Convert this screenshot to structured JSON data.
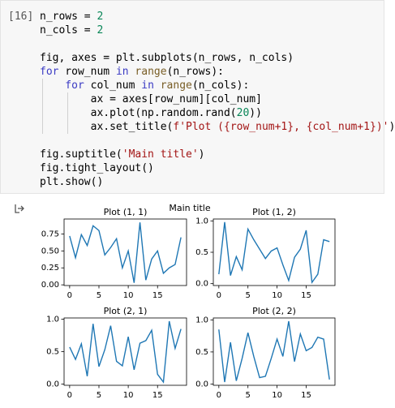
{
  "cell": {
    "prompt": "[16]",
    "code": [
      [
        [
          {
            "text": "n_rows = ",
            "color": "#000000"
          },
          {
            "text": "2",
            "color": "#098658"
          }
        ],
        [
          {
            "text": "n_cols = ",
            "color": "#000000"
          },
          {
            "text": "2",
            "color": "#098658"
          }
        ]
      ],
      [
        [
          {
            "text": "fig, axes = plt.subplots(n_rows, n_cols)",
            "color": "#000000"
          }
        ],
        [
          {
            "text": "for",
            "color": "#3b3bc4"
          },
          {
            "text": " row_num ",
            "color": "#000000"
          },
          {
            "text": "in",
            "color": "#3b3bc4"
          },
          {
            "text": " ",
            "color": "#000000"
          },
          {
            "text": "range",
            "color": "#795e26"
          },
          {
            "text": "(n_rows):",
            "color": "#000000"
          }
        ],
        [
          {
            "text": "    for",
            "color": "#3b3bc4"
          },
          {
            "text": " col_num ",
            "color": "#000000"
          },
          {
            "text": "in",
            "color": "#3b3bc4"
          },
          {
            "text": " ",
            "color": "#000000"
          },
          {
            "text": "range",
            "color": "#795e26"
          },
          {
            "text": "(n_cols):",
            "color": "#000000"
          }
        ],
        [
          {
            "text": "        ax = axes[row_num][col_num]",
            "color": "#000000"
          }
        ],
        [
          {
            "text": "        ax.plot(np.random.rand(",
            "color": "#000000"
          },
          {
            "text": "20",
            "color": "#098658"
          },
          {
            "text": "))",
            "color": "#000000"
          }
        ],
        [
          {
            "text": "        ax.set_title(",
            "color": "#000000"
          },
          {
            "text": "f'Plot ({row_num+1}, {col_num+1})'",
            "color": "#a31515"
          },
          {
            "text": ")",
            "color": "#000000"
          }
        ]
      ],
      [
        [
          {
            "text": "fig.suptitle(",
            "color": "#000000"
          },
          {
            "text": "'Main title'",
            "color": "#a31515"
          },
          {
            "text": ")",
            "color": "#000000"
          }
        ],
        [
          {
            "text": "fig.tight_layout()",
            "color": "#000000"
          }
        ],
        [
          {
            "text": "plt.show()",
            "color": "#000000"
          }
        ]
      ]
    ]
  },
  "figure_title": "Main title",
  "chart_data": [
    {
      "type": "line",
      "title": "Plot (1, 1)",
      "color": "#1f77b4",
      "values": [
        0.72,
        0.4,
        0.74,
        0.58,
        0.87,
        0.8,
        0.44,
        0.55,
        0.68,
        0.25,
        0.5,
        0.03,
        0.92,
        0.07,
        0.38,
        0.5,
        0.17,
        0.25,
        0.3,
        0.7
      ],
      "xlim": [
        -0.95,
        19.95
      ],
      "xticks": [
        0,
        5,
        10,
        15
      ],
      "ylim": [
        -0.01,
        0.97
      ],
      "yticks": [
        {
          "value": 0,
          "label": "0.00"
        },
        {
          "value": 0.25,
          "label": "0.25"
        },
        {
          "value": 0.5,
          "label": "0.50"
        },
        {
          "value": 0.75,
          "label": "0.75"
        }
      ]
    },
    {
      "type": "line",
      "title": "Plot (1, 2)",
      "color": "#1f77b4",
      "values": [
        0.15,
        0.98,
        0.13,
        0.43,
        0.22,
        0.87,
        0.7,
        0.55,
        0.4,
        0.52,
        0.57,
        0.3,
        0.05,
        0.42,
        0.55,
        0.85,
        0.02,
        0.15,
        0.7,
        0.67
      ],
      "xlim": [
        -0.95,
        19.95
      ],
      "xticks": [
        0,
        5,
        10,
        15
      ],
      "ylim": [
        -0.03,
        1.03
      ],
      "yticks": [
        {
          "value": 0,
          "label": "0.0"
        },
        {
          "value": 0.5,
          "label": "0.5"
        },
        {
          "value": 1,
          "label": "1.0"
        }
      ]
    },
    {
      "type": "line",
      "title": "Plot (2, 1)",
      "color": "#1f77b4",
      "values": [
        0.57,
        0.38,
        0.62,
        0.12,
        0.93,
        0.27,
        0.53,
        0.9,
        0.35,
        0.28,
        0.73,
        0.22,
        0.63,
        0.67,
        0.83,
        0.15,
        0.03,
        0.97,
        0.55,
        0.85
      ],
      "xlim": [
        -0.95,
        19.95
      ],
      "xticks": [
        0,
        5,
        10,
        15
      ],
      "ylim": [
        -0.02,
        1.02
      ],
      "yticks": [
        {
          "value": 0,
          "label": "0.0"
        },
        {
          "value": 0.5,
          "label": "0.5"
        },
        {
          "value": 1,
          "label": "1.0"
        }
      ]
    },
    {
      "type": "line",
      "title": "Plot (2, 2)",
      "color": "#1f77b4",
      "values": [
        0.85,
        0.03,
        0.65,
        0.05,
        0.4,
        0.8,
        0.43,
        0.1,
        0.12,
        0.4,
        0.7,
        0.43,
        0.98,
        0.35,
        0.78,
        0.52,
        0.57,
        0.73,
        0.7,
        0.07
      ],
      "xlim": [
        -0.95,
        19.95
      ],
      "xticks": [
        0,
        5,
        10,
        15
      ],
      "ylim": [
        -0.02,
        1.03
      ],
      "yticks": [
        {
          "value": 0,
          "label": "0.0"
        },
        {
          "value": 0.5,
          "label": "0.5"
        },
        {
          "value": 1,
          "label": "1.0"
        }
      ]
    }
  ]
}
